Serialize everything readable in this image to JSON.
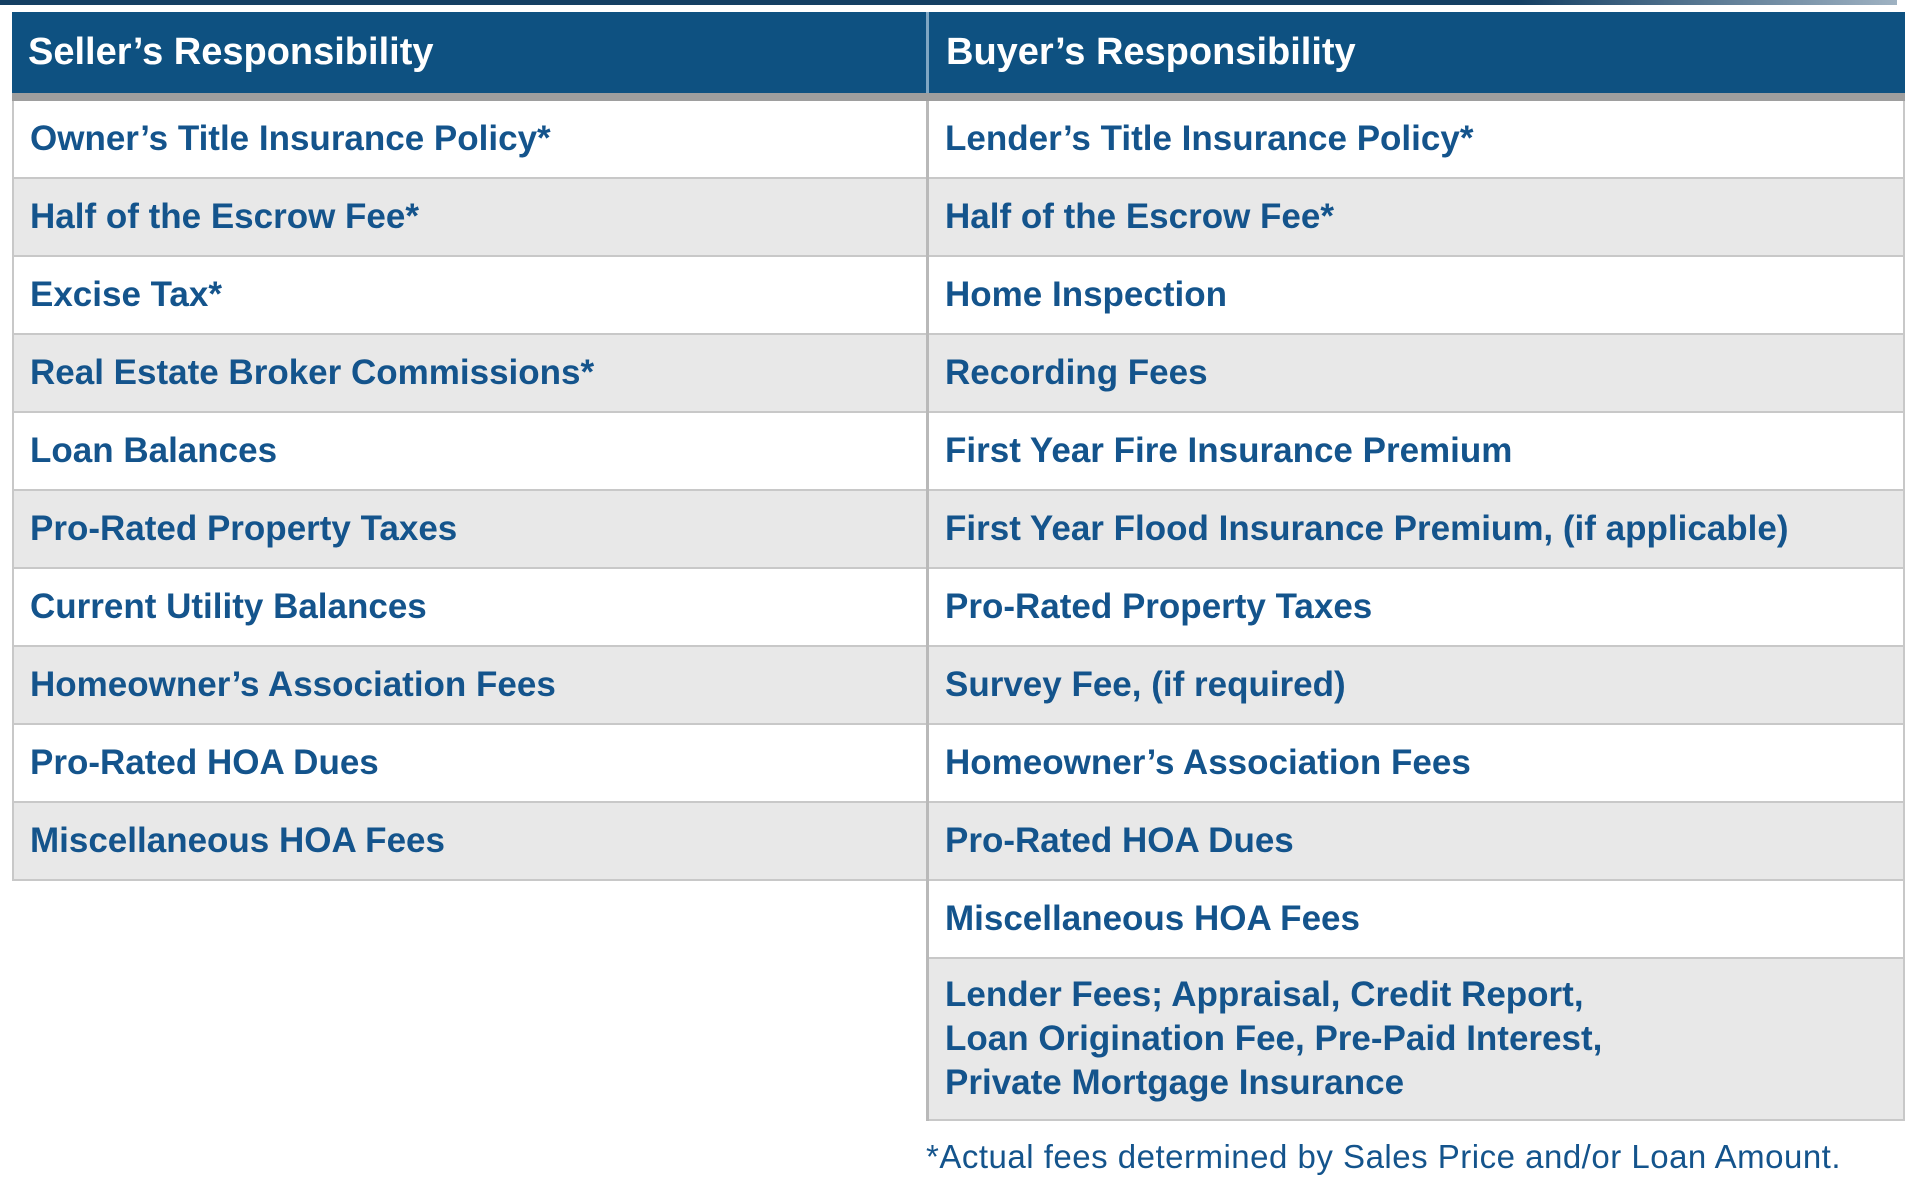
{
  "table": {
    "header": {
      "seller": "Seller’s Responsibility",
      "buyer": "Buyer’s Responsibility"
    },
    "seller_rows": [
      "Owner’s Title Insurance Policy*",
      "Half of the Escrow Fee*",
      "Excise Tax*",
      "Real Estate Broker Commissions*",
      "Loan Balances",
      "Pro-Rated Property Taxes",
      "Current Utility Balances",
      "Homeowner’s Association Fees",
      "Pro-Rated HOA Dues",
      "Miscellaneous HOA Fees"
    ],
    "buyer_rows": [
      "Lender’s Title Insurance Policy*",
      "Half of the Escrow Fee*",
      "Home Inspection",
      "Recording Fees",
      "First Year Fire Insurance Premium",
      "First Year Flood Insurance Premium, (if applicable)",
      "Pro-Rated Property Taxes",
      "Survey Fee, (if required)",
      "Homeowner’s Association Fees",
      "Pro-Rated HOA Dues",
      "Miscellaneous HOA Fees",
      "Lender Fees; Appraisal, Credit Report,\nLoan Origination Fee, Pre-Paid Interest,\nPrivate Mortgage Insurance"
    ]
  },
  "footnote": "*Actual fees determined by Sales Price and/or Loan Amount.",
  "colors": {
    "header_bg": "#0e5181",
    "header_text": "#ffffff",
    "header_band": "#9e9e9e",
    "header_divider": "#7fa6c3",
    "text": "#14548c",
    "row_bg": "#ffffff",
    "row_alt_bg": "#e8e8e8",
    "border": "#c8c8c8",
    "divider": "#b9b9b9",
    "top_edge": "#143f63"
  }
}
